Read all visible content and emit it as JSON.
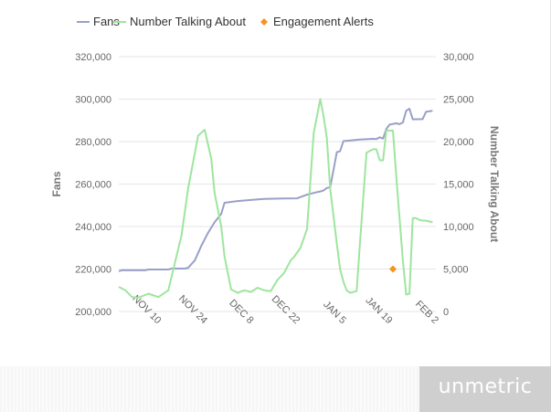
{
  "chart_data": {
    "type": "line",
    "legend": {
      "placement": "top-left",
      "items": [
        {
          "name": "Fans",
          "color": "#9aa0c8",
          "marker": "line"
        },
        {
          "name": "Number Talking About",
          "color": "#9ee59e",
          "marker": "line"
        },
        {
          "name": "Engagement Alerts",
          "color": "#f7931e",
          "marker": "diamond"
        }
      ]
    },
    "xlabel": "",
    "x_ticks": [
      "NOV 10",
      "NOV 24",
      "DEC 8",
      "DEC 22",
      "JAN 5",
      "JAN 19",
      "FEB 2"
    ],
    "y_left": {
      "label": "Fans",
      "range": [
        200000,
        320000
      ],
      "ticks": [
        200000,
        220000,
        240000,
        260000,
        280000,
        300000,
        320000
      ],
      "tick_labels": [
        "200,000",
        "220,000",
        "240,000",
        "260,000",
        "280,000",
        "300,000",
        "320,000"
      ]
    },
    "y_right": {
      "label": "Number Talking About",
      "range": [
        0,
        30000
      ],
      "ticks": [
        0,
        5000,
        10000,
        15000,
        20000,
        25000,
        30000
      ],
      "tick_labels": [
        "0",
        "5,000",
        "10,000",
        "15,000",
        "20,000",
        "25,000",
        "30,000"
      ]
    },
    "grid": "horizontal",
    "x_start": "2012-10-31",
    "x_end": "2013-02-04",
    "series": [
      {
        "name": "Fans",
        "axis": "left",
        "color": "#9aa0c8",
        "x": [
          "2012-10-31",
          "2012-11-01",
          "2012-11-08",
          "2012-11-09",
          "2012-11-15",
          "2012-11-16",
          "2012-11-20",
          "2012-11-21",
          "2012-11-23",
          "2012-11-24",
          "2012-11-25",
          "2012-11-27",
          "2012-11-29",
          "2012-12-01",
          "2012-12-02",
          "2012-12-06",
          "2012-12-10",
          "2012-12-14",
          "2012-12-20",
          "2012-12-24",
          "2012-12-27",
          "2012-12-30",
          "2012-12-31",
          "2013-01-01",
          "2013-01-02",
          "2013-01-03",
          "2013-01-04",
          "2013-01-05",
          "2013-01-06",
          "2013-01-07",
          "2013-01-12",
          "2013-01-16",
          "2013-01-17",
          "2013-01-18",
          "2013-01-19",
          "2013-01-20",
          "2013-01-21",
          "2013-01-23",
          "2013-01-24",
          "2013-01-25",
          "2013-01-26",
          "2013-01-27",
          "2013-01-28",
          "2013-01-31",
          "2013-02-01",
          "2013-02-03"
        ],
        "values": [
          219000,
          219400,
          219400,
          219800,
          219800,
          220200,
          220200,
          220600,
          224000,
          227500,
          231000,
          237000,
          242000,
          246000,
          251200,
          252000,
          252500,
          253000,
          253200,
          253300,
          255000,
          256200,
          256500,
          257000,
          258200,
          258500,
          266500,
          275000,
          275500,
          280200,
          281000,
          281300,
          281200,
          282000,
          281400,
          286000,
          288000,
          288600,
          288200,
          289000,
          294500,
          295500,
          290500,
          290600,
          294000,
          294500
        ]
      },
      {
        "name": "Number Talking About",
        "axis": "right",
        "color": "#9ee59e",
        "x": [
          "2012-10-31",
          "2012-11-02",
          "2012-11-04",
          "2012-11-06",
          "2012-11-07",
          "2012-11-09",
          "2012-11-12",
          "2012-11-15",
          "2012-11-19",
          "2012-11-21",
          "2012-11-24",
          "2012-11-26",
          "2012-11-28",
          "2012-11-29",
          "2012-12-01",
          "2012-12-02",
          "2012-12-04",
          "2012-12-06",
          "2012-12-08",
          "2012-12-10",
          "2012-12-12",
          "2012-12-14",
          "2012-12-16",
          "2012-12-18",
          "2012-12-20",
          "2012-12-22",
          "2012-12-23",
          "2012-12-25",
          "2012-12-27",
          "2012-12-29",
          "2012-12-31",
          "2013-01-01",
          "2013-01-02",
          "2013-01-03",
          "2013-01-05",
          "2013-01-06",
          "2013-01-07",
          "2013-01-08",
          "2013-01-09",
          "2013-01-11",
          "2013-01-12",
          "2013-01-14",
          "2013-01-16",
          "2013-01-17",
          "2013-01-18",
          "2013-01-19",
          "2013-01-20",
          "2013-01-21",
          "2013-01-22",
          "2013-01-23",
          "2013-01-25",
          "2013-01-26",
          "2013-01-27",
          "2013-01-28",
          "2013-01-29",
          "2013-01-30",
          "2013-01-31",
          "2013-02-01",
          "2013-02-02",
          "2013-02-03"
        ],
        "values": [
          2900,
          2500,
          1700,
          1650,
          1800,
          2100,
          1700,
          2500,
          9000,
          14500,
          20700,
          21400,
          18000,
          14000,
          10000,
          6500,
          2600,
          2200,
          2500,
          2300,
          2800,
          2500,
          2400,
          3700,
          4500,
          6000,
          6400,
          7500,
          9700,
          21000,
          25000,
          23000,
          20400,
          14500,
          8000,
          5000,
          3500,
          2500,
          2200,
          2400,
          8000,
          18700,
          19100,
          19100,
          17800,
          17800,
          21300,
          21300,
          21300,
          16000,
          6000,
          2000,
          2100,
          11000,
          11000,
          10800,
          10700,
          10700,
          10600,
          10500
        ]
      },
      {
        "name": "Engagement Alerts",
        "axis": "right",
        "color": "#f7931e",
        "type": "scatter",
        "x": [
          "2013-01-22"
        ],
        "values": [
          5000
        ]
      }
    ]
  },
  "footer": {
    "brand": "unmetric"
  }
}
